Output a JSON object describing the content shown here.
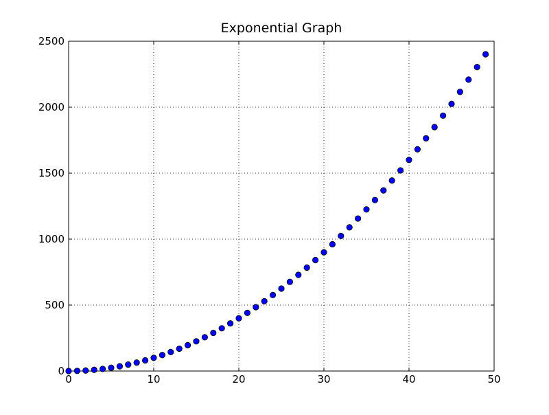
{
  "chart_data": {
    "type": "scatter",
    "title": "Exponential Graph",
    "xlabel": "",
    "ylabel": "",
    "xlim": [
      0,
      50
    ],
    "ylim": [
      0,
      2500
    ],
    "x_ticks": [
      "0",
      "10",
      "20",
      "30",
      "40",
      "50"
    ],
    "y_ticks": [
      "0",
      "500",
      "1000",
      "1500",
      "2000",
      "2500"
    ],
    "grid": true,
    "marker_color": "#0000ff",
    "marker_edge_color": "#000000",
    "series": [
      {
        "x": [
          0,
          1,
          2,
          3,
          4,
          5,
          6,
          7,
          8,
          9,
          10,
          11,
          12,
          13,
          14,
          15,
          16,
          17,
          18,
          19,
          20,
          21,
          22,
          23,
          24,
          25,
          26,
          27,
          28,
          29,
          30,
          31,
          32,
          33,
          34,
          35,
          36,
          37,
          38,
          39,
          40,
          41,
          42,
          43,
          44,
          45,
          46,
          47,
          48,
          49
        ],
        "y": [
          0,
          1,
          4,
          9,
          16,
          25,
          36,
          49,
          64,
          81,
          100,
          121,
          144,
          169,
          196,
          225,
          256,
          289,
          324,
          361,
          400,
          441,
          484,
          529,
          576,
          625,
          676,
          729,
          784,
          841,
          900,
          961,
          1024,
          1089,
          1156,
          1225,
          1296,
          1369,
          1444,
          1521,
          1600,
          1681,
          1764,
          1849,
          1936,
          2025,
          2116,
          2209,
          2304,
          2401
        ]
      }
    ]
  }
}
